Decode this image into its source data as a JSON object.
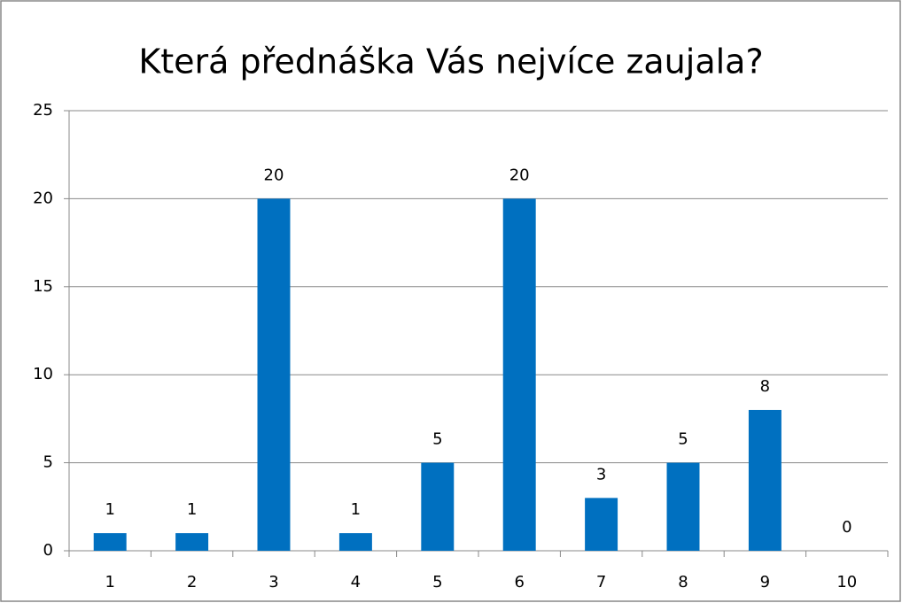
{
  "chart_data": {
    "type": "bar",
    "title": "Která přednáška Vás nejvíce zaujala?",
    "categories": [
      "1",
      "2",
      "3",
      "4",
      "5",
      "6",
      "7",
      "8",
      "9",
      "10"
    ],
    "values": [
      1,
      1,
      20,
      1,
      5,
      20,
      3,
      5,
      8,
      0
    ],
    "color": "#0070c0",
    "ylim": [
      0,
      25
    ],
    "yticks": [
      0,
      5,
      10,
      15,
      20,
      25
    ],
    "grid": true,
    "data_labels": true
  }
}
